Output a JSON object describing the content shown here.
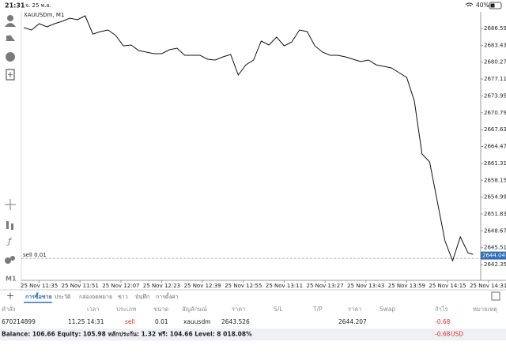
{
  "status_bar": {
    "time": "21:31",
    "date": "จ. 25 พ.ย.",
    "battery": "40%"
  },
  "toolbar": {
    "timeframe": "M1"
  },
  "chart_data": {
    "type": "line",
    "title": "XAUUSDm, M1",
    "x": [
      "25 Nov 11:29",
      "25 Nov 11:32",
      "25 Nov 11:35",
      "25 Nov 11:38",
      "25 Nov 11:41",
      "25 Nov 11:44",
      "25 Nov 11:47",
      "25 Nov 11:50",
      "25 Nov 11:53",
      "25 Nov 11:56",
      "25 Nov 11:59",
      "25 Nov 12:02",
      "25 Nov 12:05",
      "25 Nov 12:08",
      "25 Nov 12:11",
      "25 Nov 12:14",
      "25 Nov 12:17",
      "25 Nov 12:20",
      "25 Nov 12:23",
      "25 Nov 12:26",
      "25 Nov 12:29",
      "25 Nov 12:32",
      "25 Nov 12:35",
      "25 Nov 12:38",
      "25 Nov 12:41",
      "25 Nov 12:44",
      "25 Nov 12:47",
      "25 Nov 12:50",
      "25 Nov 12:53",
      "25 Nov 12:56",
      "25 Nov 12:59",
      "25 Nov 13:02",
      "25 Nov 13:05",
      "25 Nov 13:08",
      "25 Nov 13:11",
      "25 Nov 13:14",
      "25 Nov 13:17",
      "25 Nov 13:20",
      "25 Nov 13:23",
      "25 Nov 13:26",
      "25 Nov 13:29",
      "25 Nov 13:32",
      "25 Nov 13:35",
      "25 Nov 13:38",
      "25 Nov 13:41",
      "25 Nov 13:44",
      "25 Nov 13:47",
      "25 Nov 13:50",
      "25 Nov 13:53",
      "25 Nov 13:56",
      "25 Nov 13:59",
      "25 Nov 14:02",
      "25 Nov 14:05",
      "25 Nov 14:08",
      "25 Nov 14:11",
      "25 Nov 14:14",
      "25 Nov 14:17",
      "25 Nov 14:20",
      "25 Nov 14:23",
      "25 Nov 14:25"
    ],
    "series": [
      {
        "color": "#111111",
        "values": [
          2686.74,
          2686.29,
          2687.48,
          2686.89,
          2687.48,
          2687.92,
          2688.51,
          2688.22,
          2688.96,
          2685.55,
          2686.0,
          2686.29,
          2685.26,
          2683.33,
          2683.48,
          2682.45,
          2682.15,
          2681.86,
          2681.86,
          2682.6,
          2682.89,
          2681.56,
          2681.56,
          2681.56,
          2680.82,
          2680.67,
          2681.26,
          2681.71,
          2677.86,
          2679.78,
          2680.67,
          2684.22,
          2683.48,
          2684.96,
          2683.33,
          2684.07,
          2686.29,
          2686.0,
          2683.33,
          2682.15,
          2681.56,
          2681.56,
          2681.26,
          2680.82,
          2680.38,
          2680.67,
          2679.78,
          2679.49,
          2679.19,
          2678.31,
          2677.42,
          2672.98,
          2663.07,
          2661.59,
          2654.19,
          2646.79,
          2643.09,
          2647.53,
          2644.57,
          2644.27
        ]
      }
    ],
    "xlim": [
      "25 Nov 11:28",
      "25 Nov 14:28"
    ],
    "xticks": [
      "25 Nov 11:35",
      "25 Nov 11:51",
      "25 Nov 12:07",
      "25 Nov 12:23",
      "25 Nov 12:39",
      "25 Nov 12:55",
      "25 Nov 13:11",
      "25 Nov 13:27",
      "25 Nov 13:43",
      "25 Nov 13:59",
      "25 Nov 14:15",
      "25 Nov 14:31"
    ],
    "ylim": [
      2639.4,
      2689.7
    ],
    "yticks": [
      {
        "value": 2686.59,
        "label": "2686.590"
      },
      {
        "value": 2683.43,
        "label": "2683.430"
      },
      {
        "value": 2680.27,
        "label": "2680.270"
      },
      {
        "value": 2677.11,
        "label": "2677.110"
      },
      {
        "value": 2673.95,
        "label": "2673.950"
      },
      {
        "value": 2670.79,
        "label": "2670.790"
      },
      {
        "value": 2667.63,
        "label": "2667.630"
      },
      {
        "value": 2664.47,
        "label": "2664.470"
      },
      {
        "value": 2661.31,
        "label": "2661.310"
      },
      {
        "value": 2658.15,
        "label": "2658.150"
      },
      {
        "value": 2654.99,
        "label": "2654.990"
      },
      {
        "value": 2651.83,
        "label": "2651.830"
      },
      {
        "value": 2648.67,
        "label": "2648.670"
      },
      {
        "value": 2645.51,
        "label": "2645.510"
      },
      {
        "value": 2642.35,
        "label": "2642.350"
      }
    ],
    "current_price": 2644.047,
    "current_color": "#2f6db5",
    "order_line": {
      "label": "sell 0.01",
      "value": 2643.526
    }
  },
  "tabs": [
    "การซื้อขาย",
    "ประวัติ",
    "กล่องจดหมาย",
    "ข่าว",
    "บันทึก",
    "การตั้งค่า"
  ],
  "table": {
    "header": [
      "คำสั่ง",
      "เวลา",
      "ประเภท",
      "ขนาด",
      "สัญลักษณ์",
      "ราคา",
      "S/L",
      "T/P",
      "ราคา",
      "Swap",
      "กำไร",
      "หมายเหตุ"
    ],
    "rows": [
      [
        "670214899",
        "11.25 14:31",
        "sell",
        "0.01",
        "xauusdm",
        "2643.526",
        "",
        "",
        "2644.207",
        "",
        "-0.68",
        ""
      ]
    ]
  },
  "summary": {
    "text": "Balance: 106.66 Equity: 105.98 หลักประกัน: 1.32 ฟรี: 104.66 Level: 8 018.08%",
    "profit": "-0.68",
    "currency": "USD"
  }
}
